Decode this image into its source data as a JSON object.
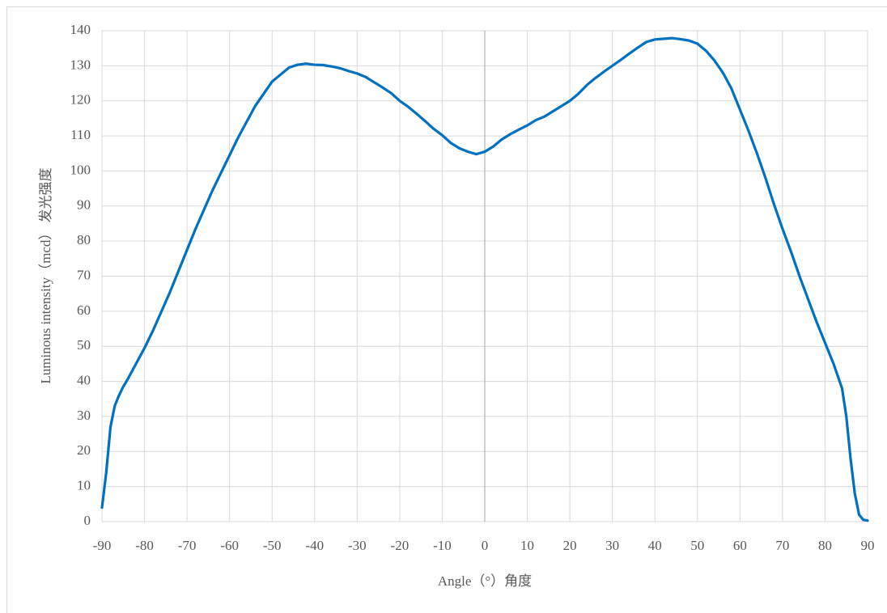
{
  "chart_data": {
    "type": "line",
    "x_label": "Angle（°）角度",
    "y_label": "Luminous intensity（mcd） 发光强度",
    "x": [
      -90,
      -89,
      -88,
      -87,
      -86,
      -85,
      -84,
      -82,
      -80,
      -78,
      -76,
      -74,
      -72,
      -70,
      -68,
      -66,
      -64,
      -62,
      -60,
      -58,
      -56,
      -54,
      -52,
      -50,
      -48,
      -46,
      -44,
      -42,
      -40,
      -38,
      -36,
      -34,
      -32,
      -30,
      -28,
      -26,
      -24,
      -22,
      -20,
      -18,
      -16,
      -14,
      -12,
      -10,
      -8,
      -6,
      -4,
      -2,
      0,
      2,
      4,
      6,
      8,
      10,
      12,
      14,
      16,
      18,
      20,
      22,
      24,
      26,
      28,
      30,
      32,
      34,
      36,
      38,
      40,
      42,
      44,
      46,
      48,
      50,
      52,
      54,
      56,
      58,
      60,
      62,
      64,
      66,
      68,
      70,
      72,
      74,
      76,
      78,
      80,
      82,
      84,
      85,
      86,
      87,
      88,
      89,
      90
    ],
    "values": [
      4,
      14,
      27,
      33,
      36,
      38.5,
      40.5,
      45,
      49.5,
      54.5,
      60,
      65.5,
      71.5,
      77.5,
      83.5,
      89,
      94.5,
      99.5,
      104.5,
      109.5,
      114,
      118.5,
      122,
      125.5,
      127.5,
      129.5,
      130.3,
      130.6,
      130.3,
      130.2,
      129.8,
      129.3,
      128.5,
      127.8,
      126.8,
      125.3,
      123.8,
      122.2,
      120,
      118.3,
      116.3,
      114.2,
      112,
      110.2,
      108,
      106.5,
      105.5,
      104.8,
      105.5,
      107,
      109,
      110.5,
      111.8,
      113,
      114.5,
      115.5,
      117,
      118.5,
      120,
      122,
      124.5,
      126.5,
      128.3,
      130,
      131.7,
      133.5,
      135.2,
      136.8,
      137.5,
      137.7,
      137.9,
      137.6,
      137.2,
      136.3,
      134.3,
      131.5,
      128,
      123.5,
      117.5,
      111.5,
      105,
      98,
      90.5,
      83.5,
      77,
      70,
      63.5,
      57,
      51,
      45,
      38,
      30,
      18,
      8,
      2,
      0.5,
      0.3
    ],
    "color": "#0070c0",
    "xlim": [
      -90,
      90
    ],
    "xticks": [
      -90,
      -80,
      -70,
      -60,
      -50,
      -40,
      -30,
      -20,
      -10,
      0,
      10,
      20,
      30,
      40,
      50,
      60,
      70,
      80,
      90
    ],
    "ylim": [
      0,
      140
    ],
    "yticks": [
      0,
      10,
      20,
      30,
      40,
      50,
      60,
      70,
      80,
      90,
      100,
      110,
      120,
      130,
      140
    ],
    "grid": true
  }
}
